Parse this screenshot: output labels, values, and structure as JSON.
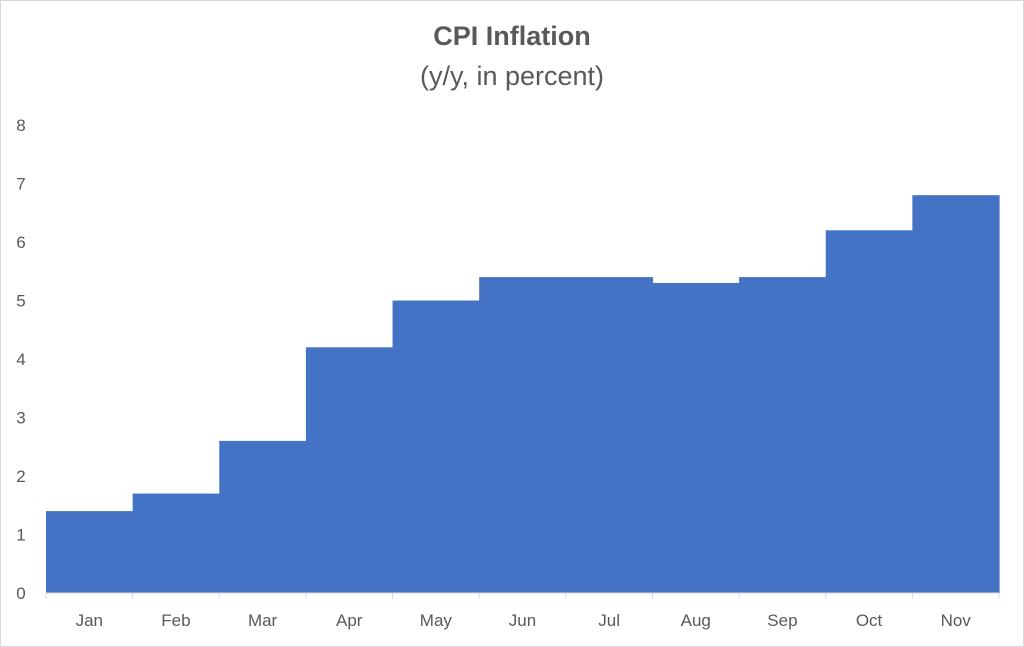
{
  "chart_data": {
    "type": "area",
    "title": "CPI Inflation",
    "subtitle": "(y/y, in percent)",
    "xlabel": "",
    "ylabel": "",
    "categories": [
      "Jan",
      "Feb",
      "Mar",
      "Apr",
      "May",
      "Jun",
      "Jul",
      "Aug",
      "Sep",
      "Oct",
      "Nov"
    ],
    "values": [
      1.4,
      1.7,
      2.6,
      4.2,
      5.0,
      5.4,
      5.4,
      5.3,
      5.4,
      6.2,
      6.8
    ],
    "ylim": [
      0,
      8
    ],
    "yticks": [
      0,
      1,
      2,
      3,
      4,
      5,
      6,
      7,
      8
    ],
    "grid": false,
    "legend": "none",
    "color": "#4472c4"
  }
}
